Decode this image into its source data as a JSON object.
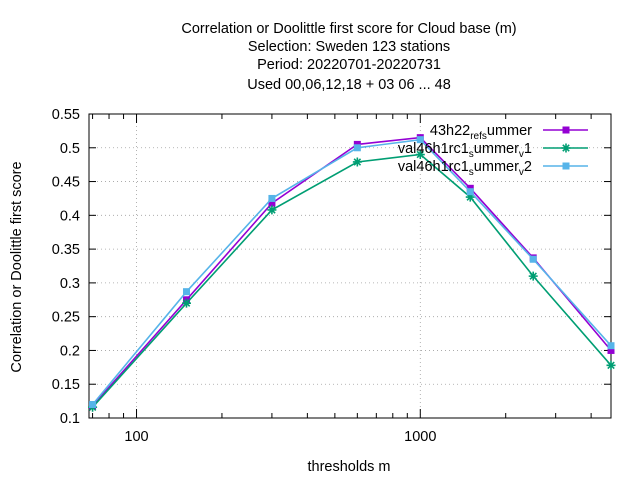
{
  "chart_data": {
    "type": "line",
    "title_lines": [
      "Correlation or Doolittle first score  for Cloud base (m)",
      "Selection: Sweden    123 stations",
      "Period: 20220701-20220731",
      "Used  00,06,12,18  + 03 06 ... 48"
    ],
    "xlabel": "thresholds m",
    "ylabel": "Correlation or Doolittle first score",
    "x_scale": "log",
    "xlim": [
      68,
      4700
    ],
    "ylim": [
      0.1,
      0.55
    ],
    "x_ticks": [
      100,
      1000
    ],
    "x_tick_labels": [
      "100",
      "1000"
    ],
    "y_ticks": [
      0.1,
      0.15,
      0.2,
      0.25,
      0.3,
      0.35,
      0.4,
      0.45,
      0.5,
      0.55
    ],
    "y_tick_labels": [
      "0.1",
      "0.15",
      "0.2",
      "0.25",
      "0.3",
      "0.35",
      "0.4",
      "0.45",
      "0.5",
      "0.55"
    ],
    "grid": true,
    "legend_position": "top-right",
    "x": [
      70,
      150,
      300,
      600,
      1000,
      1500,
      2500,
      4700
    ],
    "series": [
      {
        "legend": [
          {
            "t": "43h22",
            "s": ""
          },
          {
            "t": "ref",
            "s": "sub"
          },
          {
            "t": "s",
            "s": "sub"
          },
          {
            "t": "ummer",
            "s": ""
          }
        ],
        "color": "#9400d3",
        "marker": "square",
        "values": [
          0.118,
          0.275,
          0.418,
          0.505,
          0.515,
          0.44,
          0.337,
          0.2
        ]
      },
      {
        "legend": [
          {
            "t": "val46h1rc1",
            "s": ""
          },
          {
            "t": "s",
            "s": "sub"
          },
          {
            "t": "ummer",
            "s": ""
          },
          {
            "t": "v",
            "s": "sub"
          },
          {
            "t": "1",
            "s": ""
          }
        ],
        "color": "#009e73",
        "marker": "star",
        "values": [
          0.116,
          0.27,
          0.408,
          0.479,
          0.49,
          0.427,
          0.31,
          0.178
        ]
      },
      {
        "legend": [
          {
            "t": "val46h1rc1",
            "s": ""
          },
          {
            "t": "s",
            "s": "sub"
          },
          {
            "t": "ummer",
            "s": ""
          },
          {
            "t": "v",
            "s": "sub"
          },
          {
            "t": "2",
            "s": ""
          }
        ],
        "color": "#56b4e9",
        "marker": "square",
        "values": [
          0.12,
          0.287,
          0.425,
          0.5,
          0.512,
          0.435,
          0.335,
          0.207
        ]
      }
    ]
  }
}
